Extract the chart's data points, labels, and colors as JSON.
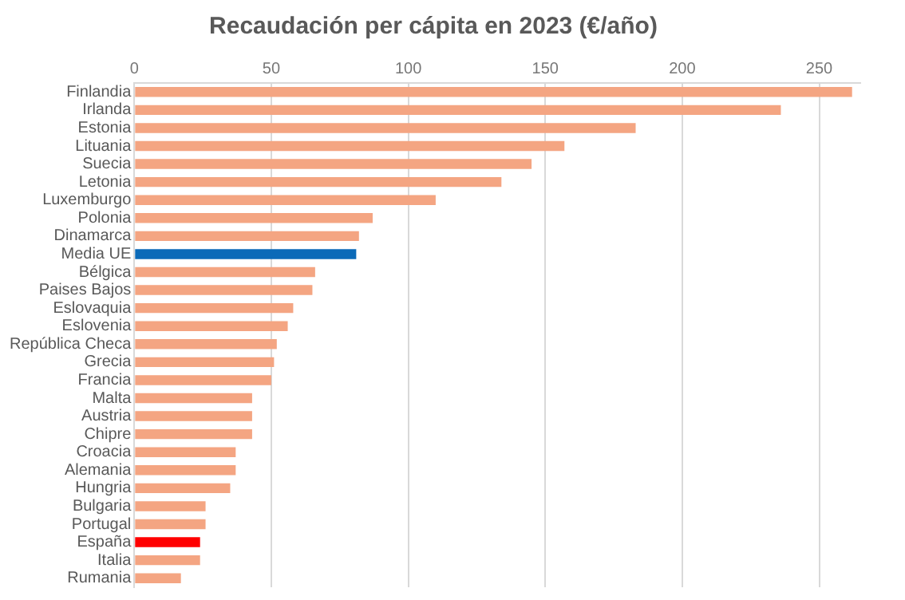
{
  "chart_data": {
    "type": "bar",
    "orientation": "horizontal",
    "title": "Recaudación per cápita en 2023 (€/año)",
    "categories": [
      "Finlandia",
      "Irlanda",
      "Estonia",
      "Lituania",
      "Suecia",
      "Letonia",
      "Luxemburgo",
      "Polonia",
      "Dinamarca",
      "Media UE",
      "Bélgica",
      "Paises Bajos",
      "Eslovaquia",
      "Eslovenia",
      "República Checa",
      "Grecia",
      "Francia",
      "Malta",
      "Austria",
      "Chipre",
      "Croacia",
      "Alemania",
      "Hungria",
      "Bulgaria",
      "Portugal",
      "España",
      "Italia",
      "Rumania"
    ],
    "values": [
      262,
      236,
      183,
      157,
      145,
      134,
      110,
      87,
      82,
      81,
      66,
      65,
      58,
      56,
      52,
      51,
      50,
      43,
      43,
      43,
      37,
      37,
      35,
      26,
      26,
      24,
      24,
      17
    ],
    "colors": [
      "#f4a582",
      "#f4a582",
      "#f4a582",
      "#f4a582",
      "#f4a582",
      "#f4a582",
      "#f4a582",
      "#f4a582",
      "#f4a582",
      "#0b6ab8",
      "#f4a582",
      "#f4a582",
      "#f4a582",
      "#f4a582",
      "#f4a582",
      "#f4a582",
      "#f4a582",
      "#f4a582",
      "#f4a582",
      "#f4a582",
      "#f4a582",
      "#f4a582",
      "#f4a582",
      "#f4a582",
      "#f4a582",
      "#ff0000",
      "#f4a582",
      "#f4a582"
    ],
    "xlim": [
      0,
      265
    ],
    "xticks": [
      0,
      50,
      100,
      150,
      200,
      250
    ],
    "grid": "x",
    "legend": false
  }
}
